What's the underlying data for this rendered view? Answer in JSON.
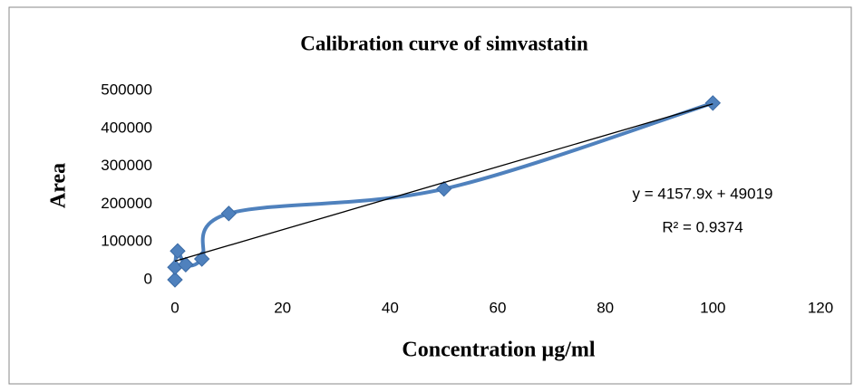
{
  "chart_data": {
    "type": "scatter",
    "title": "Calibration curve of simvastatin",
    "x_label": "Concentration µg/ml",
    "y_label": "Area",
    "series": [
      {
        "name": "Area",
        "color": "#4f81bd",
        "x": [
          0,
          0,
          0.5,
          2,
          5,
          10,
          50,
          100
        ],
        "values": [
          0,
          33000,
          76000,
          40000,
          55000,
          175000,
          240000,
          467000
        ]
      }
    ],
    "trendline": {
      "equation": "y = 4157.9x + 49019",
      "r2": "R² = 0.9374",
      "slope": 4157.9,
      "intercept": 49019,
      "color": "#000000"
    },
    "xlim": [
      0,
      120
    ],
    "xticks": [
      0,
      20,
      40,
      60,
      80,
      100,
      120
    ],
    "ylim": [
      0,
      500000
    ],
    "yticks": [
      0,
      100000,
      200000,
      300000,
      400000,
      500000
    ],
    "grid": false
  }
}
